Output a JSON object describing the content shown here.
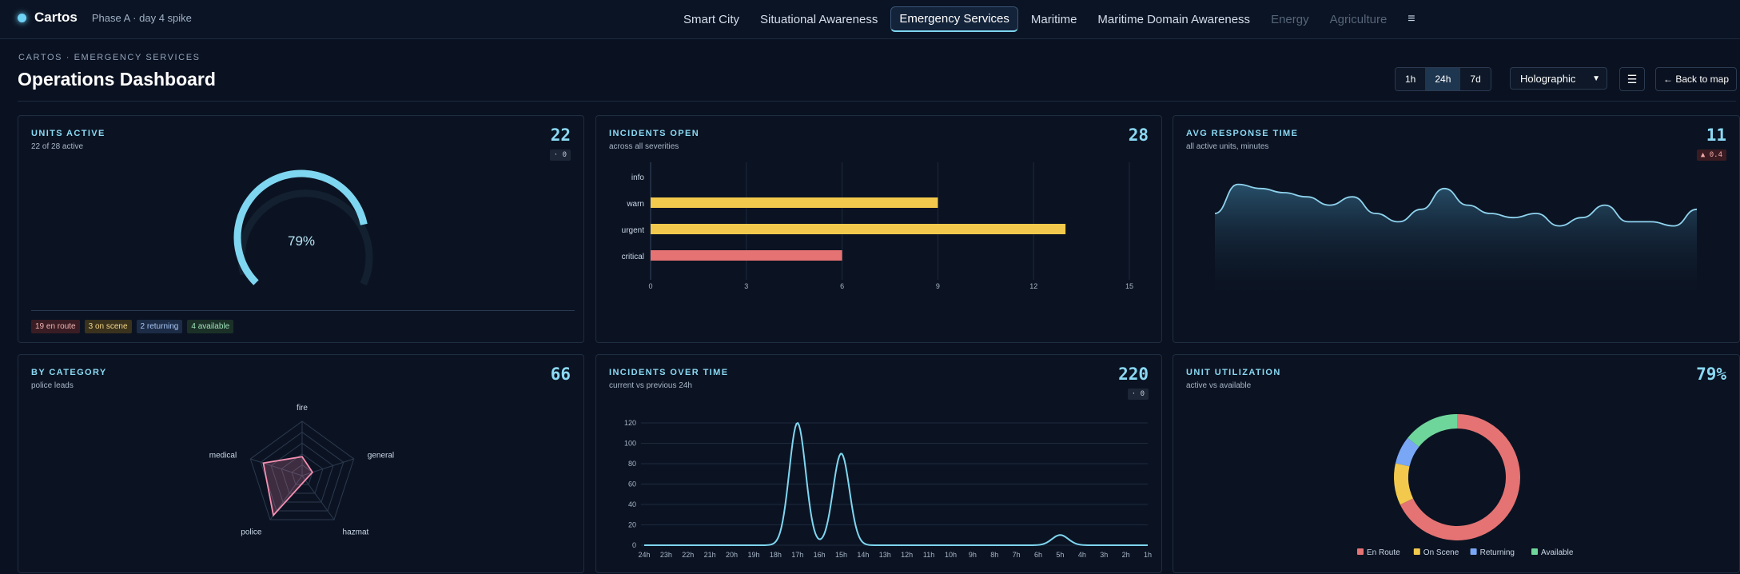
{
  "app": {
    "name": "Cartos",
    "phase": "Phase A · day 4 spike"
  },
  "nav": {
    "items": [
      {
        "label": "Smart City"
      },
      {
        "label": "Situational Awareness"
      },
      {
        "label": "Emergency Services",
        "active": true
      },
      {
        "label": "Maritime"
      },
      {
        "label": "Maritime Domain Awareness"
      },
      {
        "label": "Energy",
        "disabled": true
      },
      {
        "label": "Agriculture",
        "disabled": true
      }
    ],
    "menu_icon": "hamburger-icon"
  },
  "header": {
    "breadcrumb": "CARTOS · EMERGENCY SERVICES",
    "title": "Operations Dashboard",
    "ranges": [
      "1h",
      "24h",
      "7d"
    ],
    "selected_range": "24h",
    "theme_select": "Holographic",
    "back_label": "← Back to map"
  },
  "colors": {
    "accent": "#8bd9f3",
    "bar_yellow": "#f2c94c",
    "bar_red": "#e57373",
    "radar_pink": "#f48fb1",
    "cyan_line": "#7fd6f0"
  },
  "cards": {
    "units_active": {
      "title": "UNITS ACTIVE",
      "subtitle": "22 of 28 active",
      "value": "22",
      "delta": "· 0",
      "gauge_label": "79%",
      "gauge_fraction": 0.79,
      "chips": [
        "19 en route",
        "3 on scene",
        "2 returning",
        "4 available"
      ]
    },
    "incidents_open": {
      "title": "INCIDENTS OPEN",
      "subtitle": "across all severities",
      "value": "28"
    },
    "avg_response": {
      "title": "AVG RESPONSE TIME",
      "subtitle": "all active units, minutes",
      "value": "11",
      "delta": "▲ 0.4"
    },
    "by_category": {
      "title": "BY CATEGORY",
      "subtitle": "police leads",
      "value": "66"
    },
    "incidents_time": {
      "title": "INCIDENTS OVER TIME",
      "subtitle": "current vs previous 24h",
      "value": "220",
      "delta": "· 0"
    },
    "unit_util": {
      "title": "UNIT UTILIZATION",
      "subtitle": "active vs available",
      "value": "79%"
    }
  },
  "chart_data": [
    {
      "type": "bar",
      "orientation": "horizontal",
      "categories": [
        "info",
        "warn",
        "urgent",
        "critical"
      ],
      "values": [
        0,
        9,
        13,
        6
      ],
      "xlim": [
        0,
        15
      ],
      "xticks": [
        0,
        3,
        6,
        9,
        12,
        15
      ],
      "colors": [
        "#f2c94c",
        "#f2c94c",
        "#f2c94c",
        "#e57373"
      ]
    },
    {
      "type": "area",
      "values": [
        11.5,
        12.2,
        12.1,
        12.0,
        11.9,
        11.7,
        11.9,
        11.5,
        11.3,
        11.6,
        12.1,
        11.7,
        11.5,
        11.4,
        11.5,
        11.2,
        11.4,
        11.7,
        11.3,
        11.3,
        11.2,
        11.6
      ]
    },
    {
      "type": "radar",
      "axes": [
        "fire",
        "general",
        "hazmat",
        "police",
        "medical"
      ],
      "values": [
        0.35,
        0.2,
        0.1,
        0.9,
        0.75
      ]
    },
    {
      "type": "line",
      "x": [
        "24h",
        "23h",
        "22h",
        "21h",
        "20h",
        "19h",
        "18h",
        "17h",
        "16h",
        "15h",
        "14h",
        "13h",
        "12h",
        "11h",
        "10h",
        "9h",
        "8h",
        "7h",
        "6h",
        "5h",
        "4h",
        "3h",
        "2h",
        "1h"
      ],
      "values": [
        0,
        0,
        0,
        0,
        0,
        0,
        0,
        120,
        0,
        90,
        0,
        0,
        0,
        0,
        0,
        0,
        0,
        0,
        0,
        10,
        0,
        0,
        0,
        0
      ],
      "ylim": [
        0,
        120
      ],
      "yticks": [
        0,
        20,
        40,
        60,
        80,
        100,
        120
      ]
    },
    {
      "type": "pie",
      "donut": true,
      "labels": [
        "En Route",
        "On Scene",
        "Returning",
        "Available"
      ],
      "values": [
        19,
        3,
        2,
        4
      ],
      "colors": [
        "#e57373",
        "#f2c94c",
        "#7aa7f5",
        "#6fd69b"
      ]
    }
  ]
}
